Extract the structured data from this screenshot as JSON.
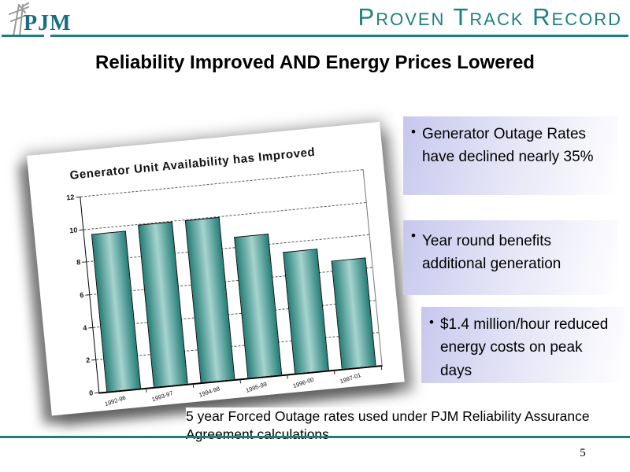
{
  "header": {
    "logo_text": "PJM",
    "title": "Proven Track Record"
  },
  "slide": {
    "heading": "Reliability Improved AND Energy Prices Lowered",
    "bullet_char": "•",
    "bullets": [
      {
        "text": "Generator Outage Rates have declined nearly 35%"
      },
      {
        "text": "Year round benefits additional generation"
      },
      {
        "text": "$1.4 million/hour reduced energy costs on peak days"
      }
    ],
    "caption": "5 year Forced Outage rates used under PJM Reliability Assurance Agreement calculations",
    "page_number": "5"
  },
  "chart_data": {
    "type": "bar",
    "title": "Generator Unit Availability has Improved",
    "categories": [
      "1992-96",
      "1993-97",
      "1994-98",
      "1995-99",
      "1996-00",
      "1997-01"
    ],
    "values": [
      9.6,
      9.9,
      9.9,
      8.6,
      7.4,
      6.6
    ],
    "xlabel": "",
    "ylabel": "",
    "ylim": [
      0,
      12
    ],
    "ytick_step": 2,
    "yticks": [
      0,
      2,
      4,
      6,
      8,
      10,
      12
    ],
    "grid": true,
    "grid_style": "dashed",
    "legend": "none",
    "bar_color_dark": "#267f79",
    "bar_color_light": "#a7d4cf"
  },
  "colors": {
    "brand_teal": "#1f7f7f",
    "title_text": "#1f8080",
    "logo_text": "#176e80",
    "logo_sketch_gray": "#9a9a9a",
    "bullet_box_gradient_start": "#c7c7ee",
    "bullet_box_gradient_end": "#ffffff",
    "heading_text": "#000000"
  }
}
